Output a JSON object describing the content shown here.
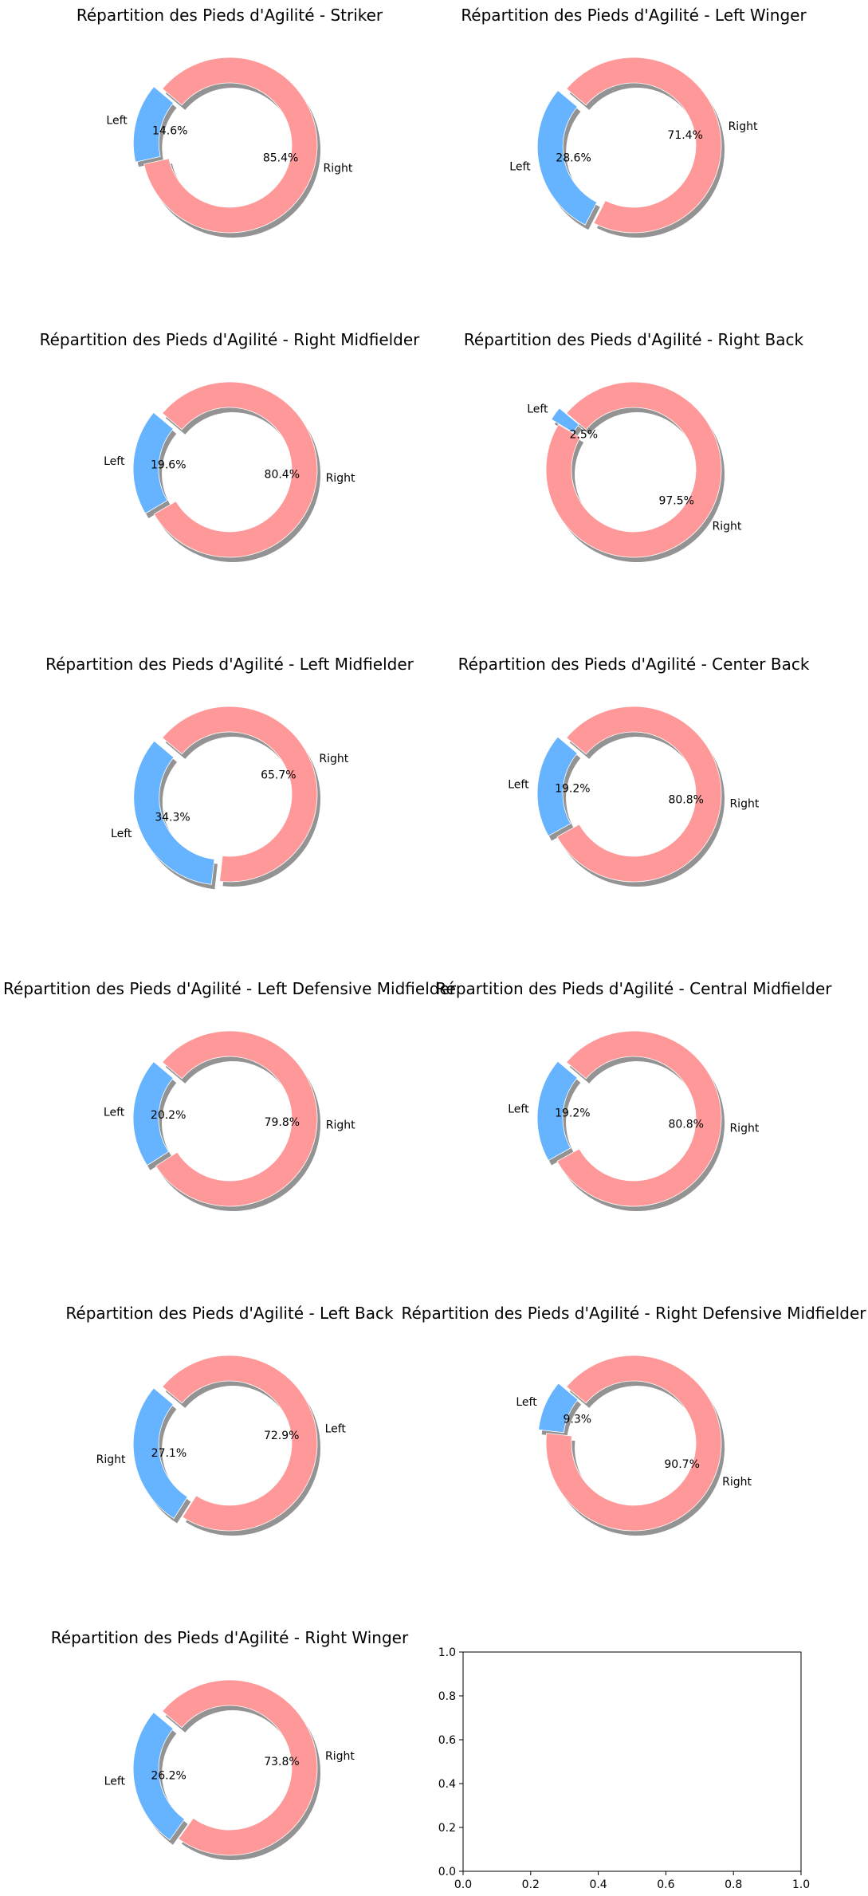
{
  "colors": {
    "left": "#66b3ff",
    "right": "#ff9999",
    "shadow": "#808080"
  },
  "chart_data": [
    {
      "type": "pie",
      "title": "Répartition des Pieds d'Agilité - Striker",
      "slices": [
        {
          "label": "Left",
          "pct_label": "14.6%",
          "value": 14.6,
          "color": "#66b3ff"
        },
        {
          "label": "Right",
          "pct_label": "85.4%",
          "value": 85.4,
          "color": "#ff9999"
        }
      ]
    },
    {
      "type": "pie",
      "title": "Répartition des Pieds d'Agilité - Left Winger",
      "slices": [
        {
          "label": "Left",
          "pct_label": "28.6%",
          "value": 28.6,
          "color": "#66b3ff"
        },
        {
          "label": "Right",
          "pct_label": "71.4%",
          "value": 71.4,
          "color": "#ff9999"
        }
      ]
    },
    {
      "type": "pie",
      "title": "Répartition des Pieds d'Agilité - Right Midfielder",
      "slices": [
        {
          "label": "Left",
          "pct_label": "19.6%",
          "value": 19.6,
          "color": "#66b3ff"
        },
        {
          "label": "Right",
          "pct_label": "80.4%",
          "value": 80.4,
          "color": "#ff9999"
        }
      ]
    },
    {
      "type": "pie",
      "title": "Répartition des Pieds d'Agilité - Right Back",
      "slices": [
        {
          "label": "Left",
          "pct_label": "2.5%",
          "value": 2.5,
          "color": "#66b3ff"
        },
        {
          "label": "Right",
          "pct_label": "97.5%",
          "value": 97.5,
          "color": "#ff9999"
        }
      ]
    },
    {
      "type": "pie",
      "title": "Répartition des Pieds d'Agilité - Left Midfielder",
      "slices": [
        {
          "label": "Left",
          "pct_label": "34.3%",
          "value": 34.3,
          "color": "#66b3ff"
        },
        {
          "label": "Right",
          "pct_label": "65.7%",
          "value": 65.7,
          "color": "#ff9999"
        }
      ]
    },
    {
      "type": "pie",
      "title": "Répartition des Pieds d'Agilité - Center Back",
      "slices": [
        {
          "label": "Left",
          "pct_label": "19.2%",
          "value": 19.2,
          "color": "#66b3ff"
        },
        {
          "label": "Right",
          "pct_label": "80.8%",
          "value": 80.8,
          "color": "#ff9999"
        }
      ]
    },
    {
      "type": "pie",
      "title": "Répartition des Pieds d'Agilité - Left Defensive Midfielder",
      "slices": [
        {
          "label": "Left",
          "pct_label": "20.2%",
          "value": 20.2,
          "color": "#66b3ff"
        },
        {
          "label": "Right",
          "pct_label": "79.8%",
          "value": 79.8,
          "color": "#ff9999"
        }
      ]
    },
    {
      "type": "pie",
      "title": "Répartition des Pieds d'Agilité - Central Midfielder",
      "slices": [
        {
          "label": "Left",
          "pct_label": "19.2%",
          "value": 19.2,
          "color": "#66b3ff"
        },
        {
          "label": "Right",
          "pct_label": "80.8%",
          "value": 80.8,
          "color": "#ff9999"
        }
      ]
    },
    {
      "type": "pie",
      "title": "Répartition des Pieds d'Agilité - Left Back",
      "slices": [
        {
          "label": "Right",
          "pct_label": "27.1%",
          "value": 27.1,
          "color": "#66b3ff"
        },
        {
          "label": "Left",
          "pct_label": "72.9%",
          "value": 72.9,
          "color": "#ff9999"
        }
      ]
    },
    {
      "type": "pie",
      "title": "Répartition des Pieds d'Agilité - Right Defensive Midfielder",
      "slices": [
        {
          "label": "Left",
          "pct_label": "9.3%",
          "value": 9.3,
          "color": "#66b3ff"
        },
        {
          "label": "Right",
          "pct_label": "90.7%",
          "value": 90.7,
          "color": "#ff9999"
        }
      ]
    },
    {
      "type": "pie",
      "title": "Répartition des Pieds d'Agilité - Right Winger",
      "slices": [
        {
          "label": "Left",
          "pct_label": "26.2%",
          "value": 26.2,
          "color": "#66b3ff"
        },
        {
          "label": "Right",
          "pct_label": "73.8%",
          "value": 73.8,
          "color": "#ff9999"
        }
      ]
    },
    {
      "type": "empty-axes",
      "xlim": [
        0,
        1
      ],
      "ylim": [
        0,
        1
      ],
      "xticks": [
        "0.0",
        "0.2",
        "0.4",
        "0.6",
        "0.8",
        "1.0"
      ],
      "yticks": [
        "0.0",
        "0.2",
        "0.4",
        "0.6",
        "0.8",
        "1.0"
      ]
    }
  ]
}
